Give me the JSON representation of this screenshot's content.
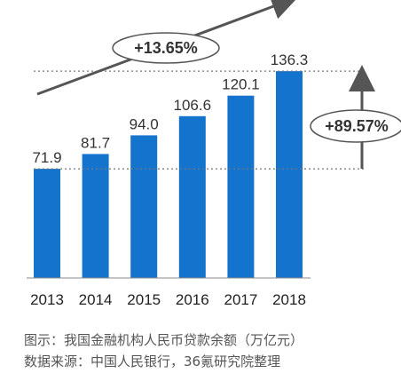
{
  "chart_data": {
    "type": "bar",
    "categories": [
      "2013",
      "2014",
      "2015",
      "2016",
      "2017",
      "2018"
    ],
    "values": [
      71.9,
      81.7,
      94.0,
      106.6,
      120.1,
      136.3
    ],
    "value_labels": [
      "71.9",
      "81.7",
      "94.0",
      "106.6",
      "120.1",
      "136.3"
    ],
    "ylim": [
      0,
      140
    ],
    "bar_color": "#1473cc",
    "annotations": {
      "trend_growth": "+13.65%",
      "total_growth": "+89.57%"
    }
  },
  "caption": {
    "line1": "图示：我国金融机构人民币贷款余额（万亿元）",
    "line2": "数据来源：中国人民银行，36氪研究院整理"
  }
}
